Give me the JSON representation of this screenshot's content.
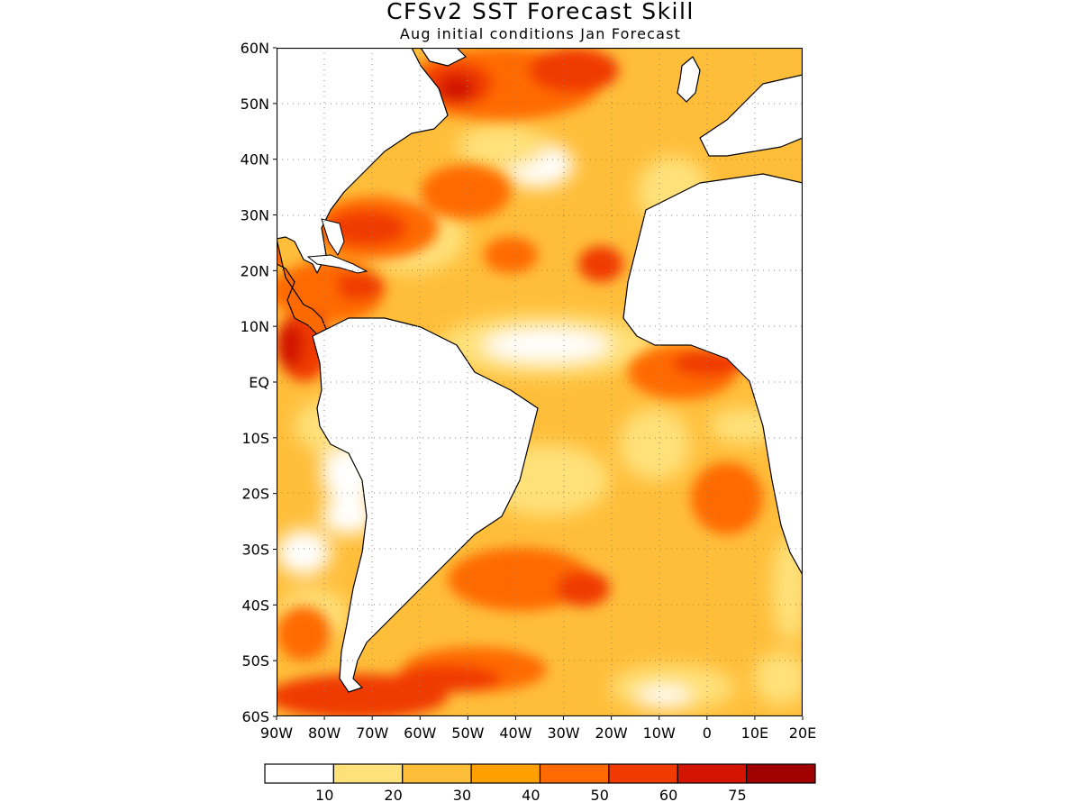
{
  "title": "CFSv2 SST Forecast Skill",
  "subtitle": "Aug initial conditions  Jan Forecast",
  "map": {
    "lat_labels": [
      "60N",
      "50N",
      "40N",
      "30N",
      "20N",
      "10N",
      "EQ",
      "10S",
      "20S",
      "30S",
      "40S",
      "50S",
      "60S"
    ],
    "lon_labels": [
      "90W",
      "80W",
      "70W",
      "60W",
      "50W",
      "40W",
      "30W",
      "20W",
      "10W",
      "0",
      "10E",
      "20E"
    ],
    "lat_range": [
      -60,
      60
    ],
    "lon_range": [
      -90,
      20
    ],
    "grid": "dotted",
    "land_color": "#ffffff",
    "coastline_color": "#000000"
  },
  "colorbar": {
    "levels": [
      "10",
      "20",
      "30",
      "40",
      "50",
      "60",
      "75"
    ],
    "colors": [
      "#ffffff",
      "#ffe17a",
      "#ffbe3a",
      "#ffa000",
      "#ff6a00",
      "#f03a00",
      "#d21400",
      "#a00000"
    ]
  }
}
